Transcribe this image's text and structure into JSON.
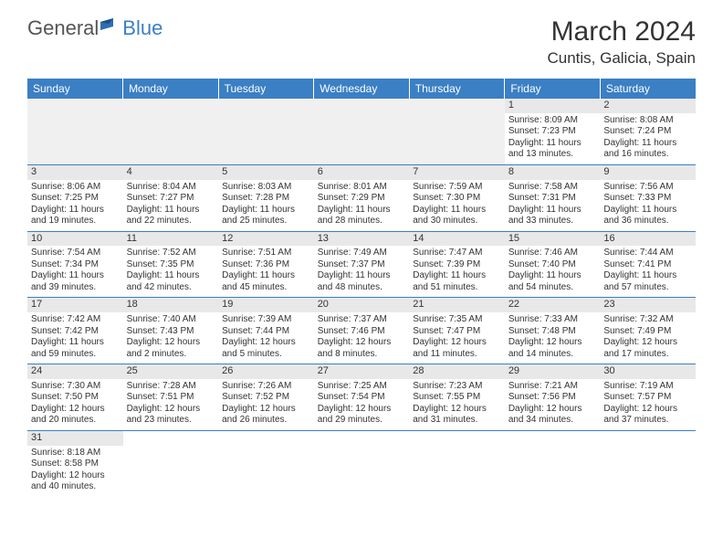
{
  "brand": {
    "part1": "General",
    "part2": "Blue"
  },
  "title": "March 2024",
  "location": "Cuntis, Galicia, Spain",
  "colors": {
    "header_bg": "#3b7fc4",
    "header_text": "#ffffff",
    "daynum_bg": "#e8e8e8",
    "row_border": "#3b7fc4",
    "text": "#333333",
    "empty_bg": "#f0f0f0"
  },
  "days_of_week": [
    "Sunday",
    "Monday",
    "Tuesday",
    "Wednesday",
    "Thursday",
    "Friday",
    "Saturday"
  ],
  "weeks": [
    [
      null,
      null,
      null,
      null,
      null,
      {
        "n": "1",
        "l1": "Sunrise: 8:09 AM",
        "l2": "Sunset: 7:23 PM",
        "l3": "Daylight: 11 hours",
        "l4": "and 13 minutes."
      },
      {
        "n": "2",
        "l1": "Sunrise: 8:08 AM",
        "l2": "Sunset: 7:24 PM",
        "l3": "Daylight: 11 hours",
        "l4": "and 16 minutes."
      }
    ],
    [
      {
        "n": "3",
        "l1": "Sunrise: 8:06 AM",
        "l2": "Sunset: 7:25 PM",
        "l3": "Daylight: 11 hours",
        "l4": "and 19 minutes."
      },
      {
        "n": "4",
        "l1": "Sunrise: 8:04 AM",
        "l2": "Sunset: 7:27 PM",
        "l3": "Daylight: 11 hours",
        "l4": "and 22 minutes."
      },
      {
        "n": "5",
        "l1": "Sunrise: 8:03 AM",
        "l2": "Sunset: 7:28 PM",
        "l3": "Daylight: 11 hours",
        "l4": "and 25 minutes."
      },
      {
        "n": "6",
        "l1": "Sunrise: 8:01 AM",
        "l2": "Sunset: 7:29 PM",
        "l3": "Daylight: 11 hours",
        "l4": "and 28 minutes."
      },
      {
        "n": "7",
        "l1": "Sunrise: 7:59 AM",
        "l2": "Sunset: 7:30 PM",
        "l3": "Daylight: 11 hours",
        "l4": "and 30 minutes."
      },
      {
        "n": "8",
        "l1": "Sunrise: 7:58 AM",
        "l2": "Sunset: 7:31 PM",
        "l3": "Daylight: 11 hours",
        "l4": "and 33 minutes."
      },
      {
        "n": "9",
        "l1": "Sunrise: 7:56 AM",
        "l2": "Sunset: 7:33 PM",
        "l3": "Daylight: 11 hours",
        "l4": "and 36 minutes."
      }
    ],
    [
      {
        "n": "10",
        "l1": "Sunrise: 7:54 AM",
        "l2": "Sunset: 7:34 PM",
        "l3": "Daylight: 11 hours",
        "l4": "and 39 minutes."
      },
      {
        "n": "11",
        "l1": "Sunrise: 7:52 AM",
        "l2": "Sunset: 7:35 PM",
        "l3": "Daylight: 11 hours",
        "l4": "and 42 minutes."
      },
      {
        "n": "12",
        "l1": "Sunrise: 7:51 AM",
        "l2": "Sunset: 7:36 PM",
        "l3": "Daylight: 11 hours",
        "l4": "and 45 minutes."
      },
      {
        "n": "13",
        "l1": "Sunrise: 7:49 AM",
        "l2": "Sunset: 7:37 PM",
        "l3": "Daylight: 11 hours",
        "l4": "and 48 minutes."
      },
      {
        "n": "14",
        "l1": "Sunrise: 7:47 AM",
        "l2": "Sunset: 7:39 PM",
        "l3": "Daylight: 11 hours",
        "l4": "and 51 minutes."
      },
      {
        "n": "15",
        "l1": "Sunrise: 7:46 AM",
        "l2": "Sunset: 7:40 PM",
        "l3": "Daylight: 11 hours",
        "l4": "and 54 minutes."
      },
      {
        "n": "16",
        "l1": "Sunrise: 7:44 AM",
        "l2": "Sunset: 7:41 PM",
        "l3": "Daylight: 11 hours",
        "l4": "and 57 minutes."
      }
    ],
    [
      {
        "n": "17",
        "l1": "Sunrise: 7:42 AM",
        "l2": "Sunset: 7:42 PM",
        "l3": "Daylight: 11 hours",
        "l4": "and 59 minutes."
      },
      {
        "n": "18",
        "l1": "Sunrise: 7:40 AM",
        "l2": "Sunset: 7:43 PM",
        "l3": "Daylight: 12 hours",
        "l4": "and 2 minutes."
      },
      {
        "n": "19",
        "l1": "Sunrise: 7:39 AM",
        "l2": "Sunset: 7:44 PM",
        "l3": "Daylight: 12 hours",
        "l4": "and 5 minutes."
      },
      {
        "n": "20",
        "l1": "Sunrise: 7:37 AM",
        "l2": "Sunset: 7:46 PM",
        "l3": "Daylight: 12 hours",
        "l4": "and 8 minutes."
      },
      {
        "n": "21",
        "l1": "Sunrise: 7:35 AM",
        "l2": "Sunset: 7:47 PM",
        "l3": "Daylight: 12 hours",
        "l4": "and 11 minutes."
      },
      {
        "n": "22",
        "l1": "Sunrise: 7:33 AM",
        "l2": "Sunset: 7:48 PM",
        "l3": "Daylight: 12 hours",
        "l4": "and 14 minutes."
      },
      {
        "n": "23",
        "l1": "Sunrise: 7:32 AM",
        "l2": "Sunset: 7:49 PM",
        "l3": "Daylight: 12 hours",
        "l4": "and 17 minutes."
      }
    ],
    [
      {
        "n": "24",
        "l1": "Sunrise: 7:30 AM",
        "l2": "Sunset: 7:50 PM",
        "l3": "Daylight: 12 hours",
        "l4": "and 20 minutes."
      },
      {
        "n": "25",
        "l1": "Sunrise: 7:28 AM",
        "l2": "Sunset: 7:51 PM",
        "l3": "Daylight: 12 hours",
        "l4": "and 23 minutes."
      },
      {
        "n": "26",
        "l1": "Sunrise: 7:26 AM",
        "l2": "Sunset: 7:52 PM",
        "l3": "Daylight: 12 hours",
        "l4": "and 26 minutes."
      },
      {
        "n": "27",
        "l1": "Sunrise: 7:25 AM",
        "l2": "Sunset: 7:54 PM",
        "l3": "Daylight: 12 hours",
        "l4": "and 29 minutes."
      },
      {
        "n": "28",
        "l1": "Sunrise: 7:23 AM",
        "l2": "Sunset: 7:55 PM",
        "l3": "Daylight: 12 hours",
        "l4": "and 31 minutes."
      },
      {
        "n": "29",
        "l1": "Sunrise: 7:21 AM",
        "l2": "Sunset: 7:56 PM",
        "l3": "Daylight: 12 hours",
        "l4": "and 34 minutes."
      },
      {
        "n": "30",
        "l1": "Sunrise: 7:19 AM",
        "l2": "Sunset: 7:57 PM",
        "l3": "Daylight: 12 hours",
        "l4": "and 37 minutes."
      }
    ],
    [
      {
        "n": "31",
        "l1": "Sunrise: 8:18 AM",
        "l2": "Sunset: 8:58 PM",
        "l3": "Daylight: 12 hours",
        "l4": "and 40 minutes."
      },
      null,
      null,
      null,
      null,
      null,
      null
    ]
  ]
}
